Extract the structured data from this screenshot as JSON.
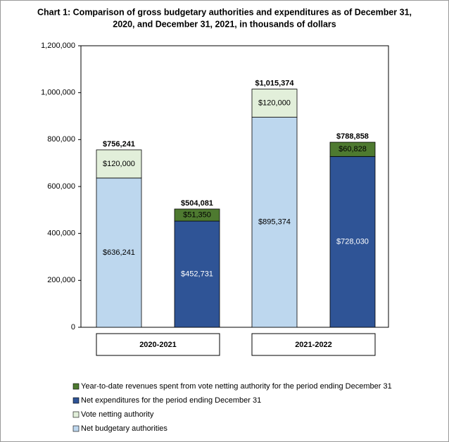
{
  "chart_data": {
    "type": "stacked-bar",
    "title": [
      "Chart 1: Comparison of gross budgetary authorities and expenditures as of December 31,",
      "2020, and December 31, 2021, in thousands of dollars"
    ],
    "groups": [
      "2020-2021",
      "2021-2022"
    ],
    "series": [
      {
        "name": "Year-to-date revenues spent from vote netting authority for the period ending December 31",
        "color": "#4e7a30",
        "label_color": "#000000",
        "values": [
          null,
          51350,
          null,
          60828
        ],
        "value_labels": [
          null,
          "$51,350",
          null,
          "$60,828"
        ]
      },
      {
        "name": "Net expenditures for the period ending December 31",
        "color": "#2f5496",
        "label_color": "#ffffff",
        "values": [
          null,
          452731,
          null,
          728030
        ],
        "value_labels": [
          null,
          "$452,731",
          null,
          "$728,030"
        ]
      },
      {
        "name": "Vote netting authority",
        "color": "#e2efda",
        "label_color": "#000000",
        "values": [
          120000,
          null,
          120000,
          null
        ],
        "value_labels": [
          "$120,000",
          null,
          "$120,000",
          null
        ]
      },
      {
        "name": "Net budgetary authorities",
        "color": "#bdd7ee",
        "label_color": "#000000",
        "values": [
          636241,
          null,
          895374,
          null
        ],
        "value_labels": [
          "$636,241",
          null,
          "$895,374",
          null
        ]
      }
    ],
    "totals": [
      756241,
      504081,
      1015374,
      788858
    ],
    "total_labels": [
      "$756,241",
      "$504,081",
      "$1,015,374",
      "$788,858"
    ],
    "ylim": [
      0,
      1200000
    ],
    "yticks": [
      0,
      {
        "value": 200000,
        "label": "200,000"
      },
      {
        "value": 400000,
        "label": "400,000"
      },
      {
        "value": 600000,
        "label": "600,000"
      },
      {
        "value": 800000,
        "label": "800,000"
      },
      {
        "value": 1000000,
        "label": "1,000,000"
      },
      {
        "value": 1200000,
        "label": "1,200,000"
      }
    ],
    "grid": false
  }
}
